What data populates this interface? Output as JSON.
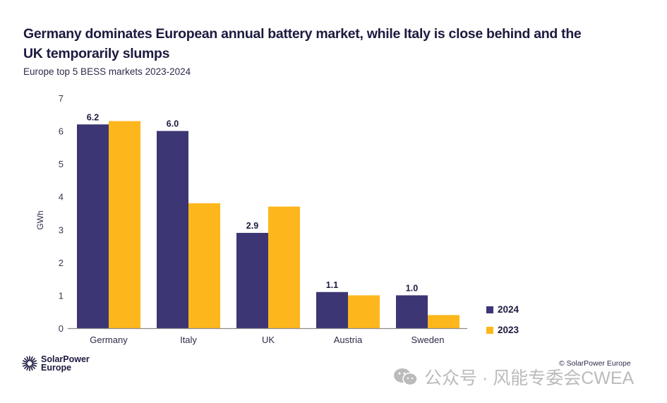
{
  "header": {
    "title": "Germany dominates European annual battery market, while Italy is close behind and the UK temporarily slumps",
    "subtitle": "Europe top 5 BESS markets 2023-2024"
  },
  "chart_data": {
    "type": "bar",
    "title": "Germany dominates European annual battery market, while Italy is close behind and the UK temporarily slumps",
    "subtitle": "Europe top 5 BESS markets 2023-2024",
    "xlabel": "",
    "ylabel": "GWh",
    "ylim": [
      0,
      7
    ],
    "yticks": [
      "0",
      "1",
      "2",
      "3",
      "4",
      "5",
      "6",
      "7"
    ],
    "grid": false,
    "legend_position": "bottom-right",
    "categories": [
      "Germany",
      "Italy",
      "UK",
      "Austria",
      "Sweden"
    ],
    "series": [
      {
        "name": "2024",
        "color": "#3c3674",
        "values": [
          6.2,
          6.0,
          2.9,
          1.1,
          1.0
        ],
        "labels": [
          "6.2",
          "6.0",
          "2.9",
          "1.1",
          "1.0"
        ]
      },
      {
        "name": "2023",
        "color": "#fdb71c",
        "values": [
          6.3,
          3.8,
          3.7,
          1.0,
          0.4
        ],
        "labels": null
      }
    ]
  },
  "legend": {
    "items": [
      {
        "label": "2024",
        "color": "#3c3674"
      },
      {
        "label": "2023",
        "color": "#fdb71c"
      }
    ]
  },
  "footer": {
    "logo_line1": "SolarPower",
    "logo_line2": "Europe",
    "credit": "© SolarPower Europe",
    "watermark": "公众号 · 风能专委会CWEA"
  }
}
